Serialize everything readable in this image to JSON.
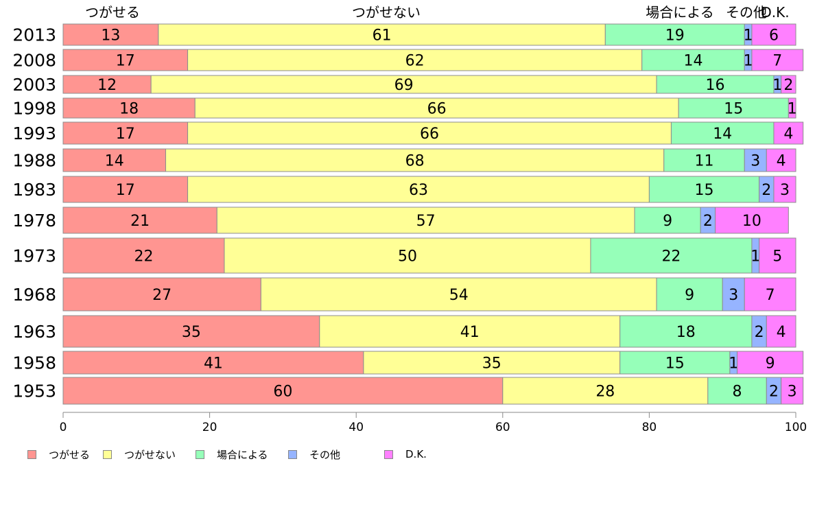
{
  "chart_data": {
    "type": "bar",
    "orientation": "horizontal",
    "stacked": true,
    "categories": [
      "2013",
      "2008",
      "2003",
      "1998",
      "1993",
      "1988",
      "1983",
      "1978",
      "1973",
      "1968",
      "1963",
      "1958",
      "1953"
    ],
    "series": [
      {
        "name": "つがせる",
        "color": "#ff9591",
        "values": [
          13,
          17,
          12,
          18,
          17,
          14,
          17,
          21,
          22,
          27,
          35,
          41,
          60
        ]
      },
      {
        "name": "つがせない",
        "color": "#ffff96",
        "values": [
          61,
          62,
          69,
          66,
          66,
          68,
          63,
          57,
          50,
          54,
          41,
          35,
          28
        ]
      },
      {
        "name": "場合による",
        "color": "#96ffb9",
        "values": [
          19,
          14,
          16,
          15,
          14,
          11,
          15,
          9,
          22,
          9,
          18,
          15,
          8
        ]
      },
      {
        "name": "その他",
        "color": "#96b4ff",
        "values": [
          1,
          1,
          1,
          0,
          0,
          3,
          2,
          2,
          1,
          3,
          2,
          1,
          2
        ]
      },
      {
        "name": "D.K.",
        "color": "#ff80ff",
        "values": [
          6,
          7,
          2,
          1,
          4,
          4,
          3,
          10,
          5,
          7,
          4,
          9,
          3
        ]
      }
    ],
    "top_labels": [
      "つがせる",
      "つがせない",
      "場合による",
      "その他",
      "D.K."
    ],
    "xlim": [
      0,
      100
    ],
    "xticks": [
      0,
      20,
      40,
      60,
      80,
      100
    ],
    "grid": false,
    "legend": "bottom"
  }
}
